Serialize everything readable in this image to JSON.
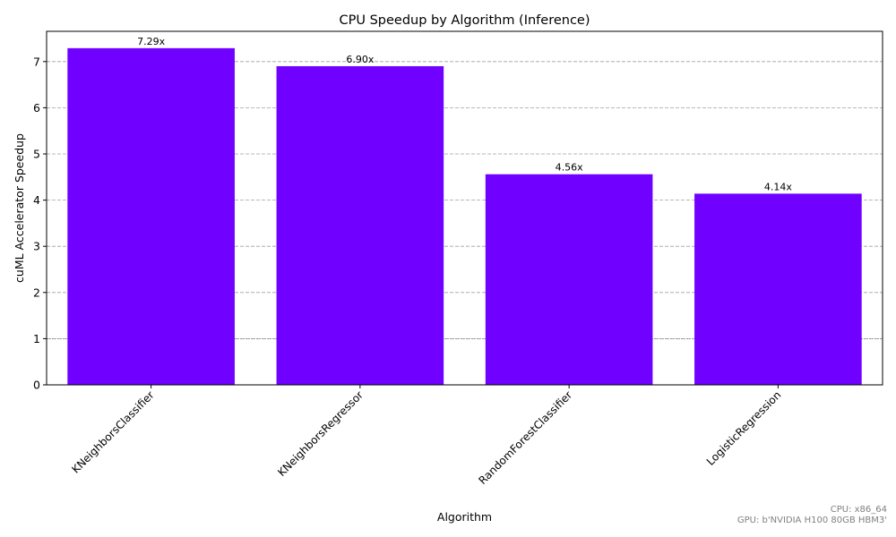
{
  "chart_data": {
    "type": "bar",
    "title": "CPU Speedup by Algorithm (Inference)",
    "xlabel": "Algorithm",
    "ylabel": "cuML Accelerator Speedup",
    "categories": [
      "KNeighborsClassifier",
      "KNeighborsRegressor",
      "RandomForestClassifier",
      "LogisticRegression"
    ],
    "values": [
      7.29,
      6.9,
      4.56,
      4.14
    ],
    "value_labels": [
      "7.29x",
      "6.90x",
      "4.56x",
      "4.14x"
    ],
    "ylim": [
      0,
      7.655
    ],
    "yticks": [
      0,
      1,
      2,
      3,
      4,
      5,
      6,
      7
    ],
    "grid": "y-dashed",
    "reference_line": 1,
    "bar_color": "#7000ff",
    "legend": "none"
  },
  "footer": {
    "cpu_label": "CPU: x86_64",
    "gpu_label": "GPU: b'NVIDIA H100 80GB HBM3'"
  }
}
